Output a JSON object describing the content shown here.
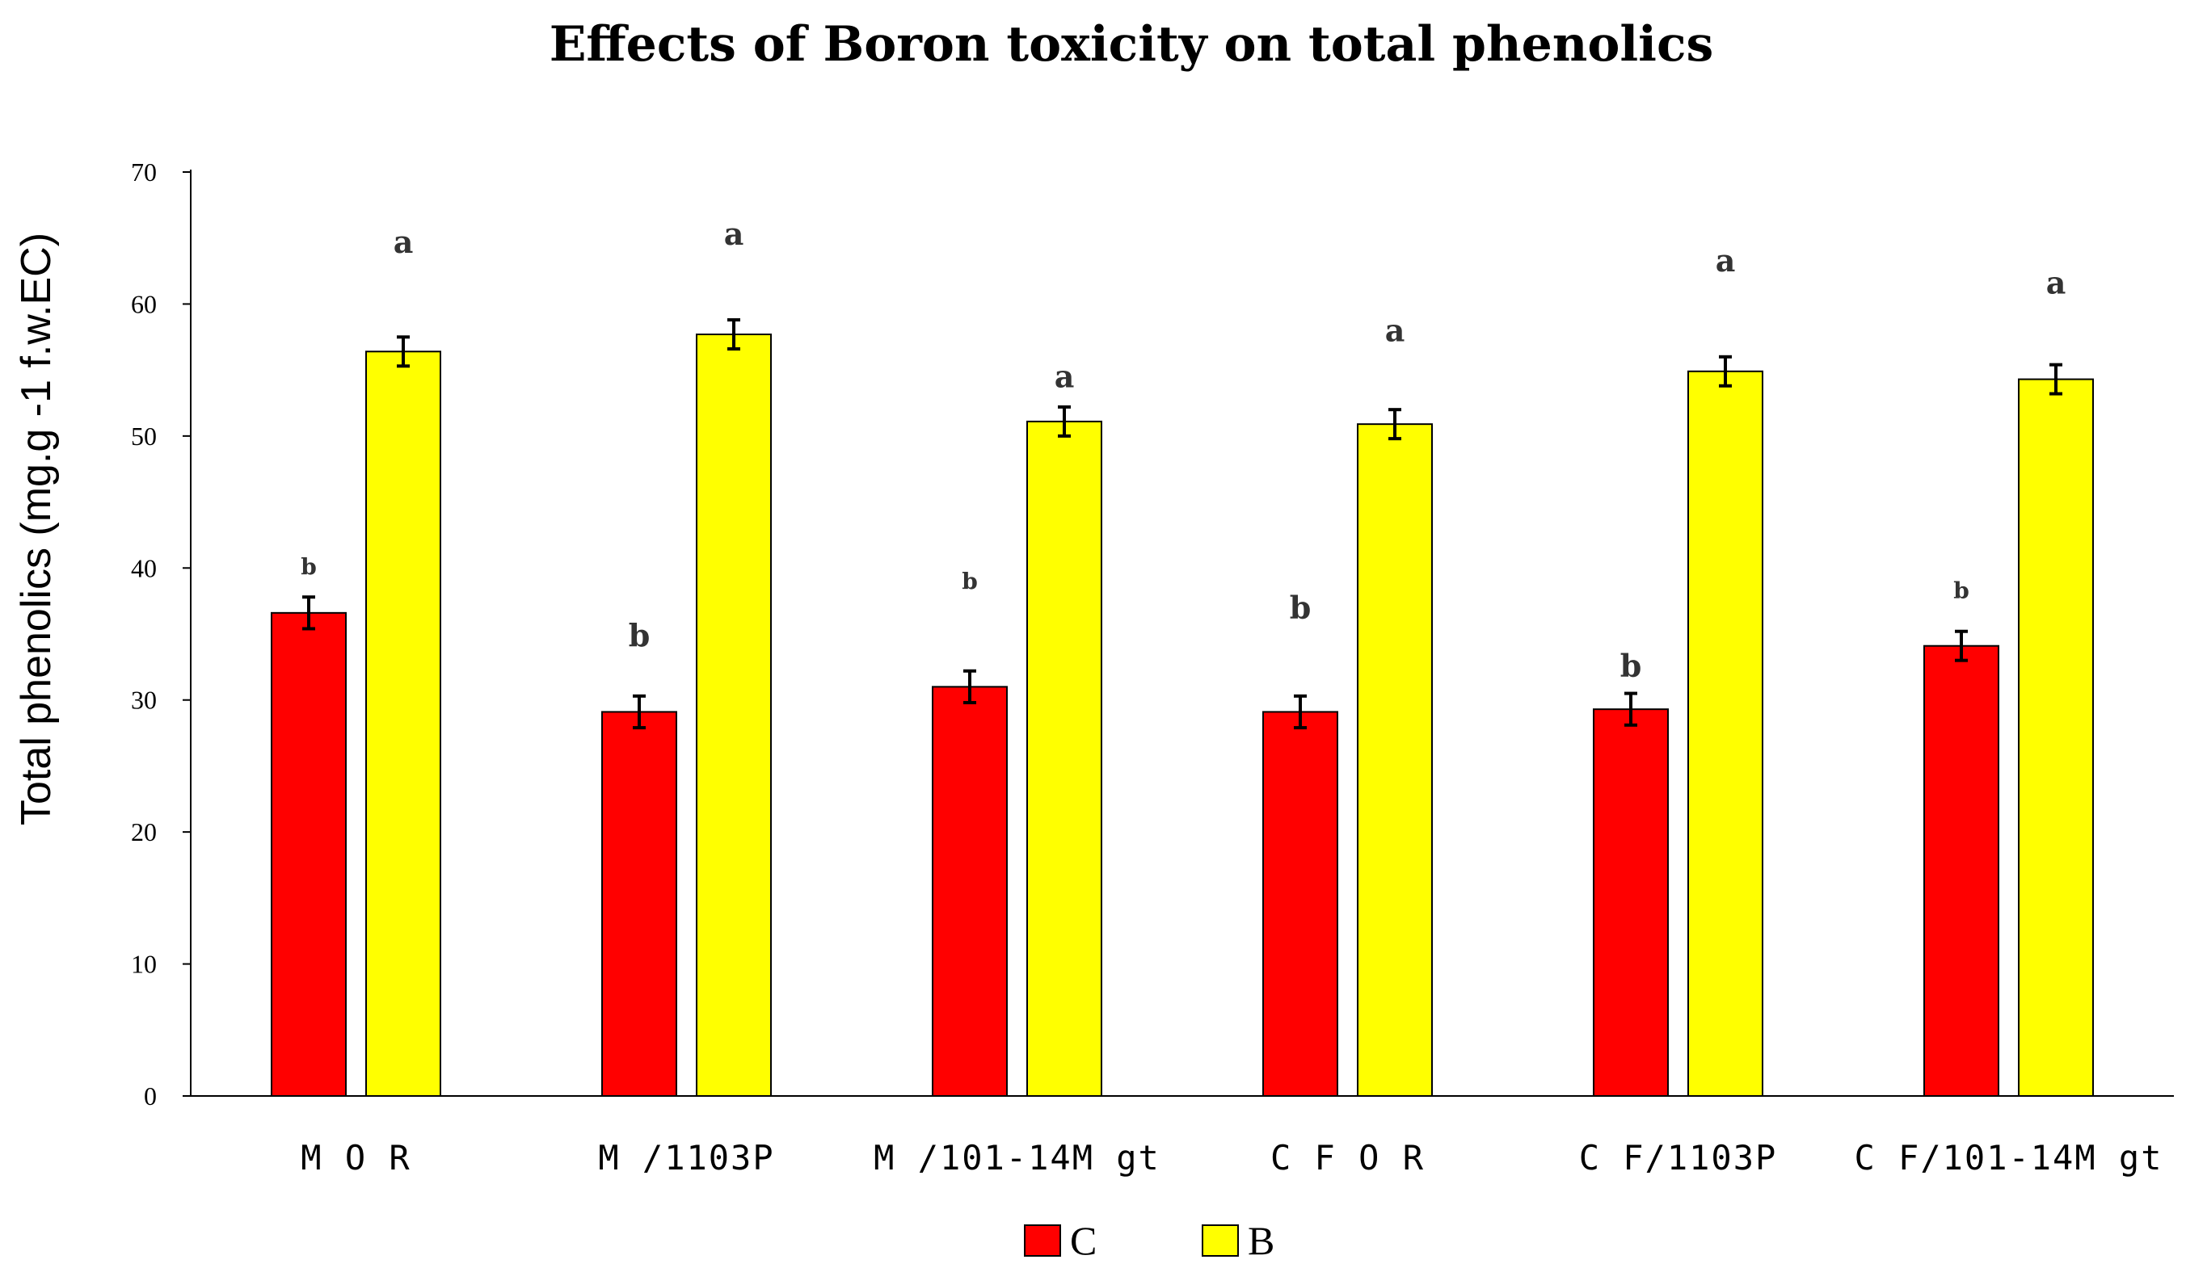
{
  "chart_data": {
    "type": "bar",
    "title": "Effects of Boron toxicity on total phenolics",
    "xlabel": "",
    "ylabel": "Total phenolics (mg.g -1 f.w.EC)",
    "ylim": [
      0,
      70
    ],
    "yticks": [
      0,
      10,
      20,
      30,
      40,
      50,
      60,
      70
    ],
    "grid": false,
    "legend_position": "bottom-center",
    "categories": [
      "M O R",
      "M /1103P",
      "M /101-14M gt",
      "C F O R",
      "C F/1103P",
      "C F/101-14M gt"
    ],
    "series": [
      {
        "name": "C",
        "color": "#ff0000",
        "values": [
          36.6,
          29.1,
          31.0,
          29.1,
          29.3,
          34.1
        ],
        "errors": [
          1.2,
          1.2,
          1.2,
          1.2,
          1.2,
          1.1
        ],
        "labels": [
          "b",
          "b",
          "b",
          "b",
          "b",
          "b"
        ]
      },
      {
        "name": "B",
        "color": "#ffff00",
        "values": [
          56.4,
          57.7,
          51.1,
          50.9,
          54.9,
          54.3
        ],
        "errors": [
          1.1,
          1.1,
          1.1,
          1.1,
          1.1,
          1.1
        ],
        "labels": [
          "a",
          "a",
          "a",
          "a",
          "a",
          "a"
        ]
      }
    ],
    "label_heights": {
      "C": [
        40.1,
        34.9,
        39.0,
        37.0,
        32.6,
        38.3
      ],
      "B": [
        64.7,
        65.3,
        54.5,
        58.0,
        63.3,
        61.6
      ]
    }
  }
}
